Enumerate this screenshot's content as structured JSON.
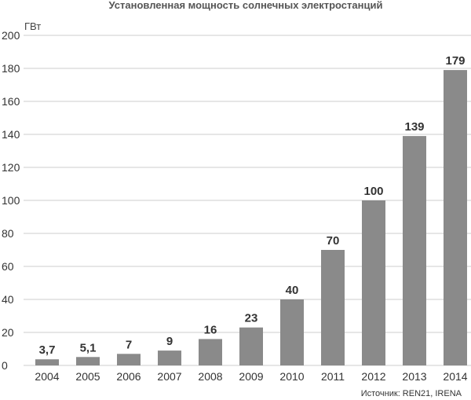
{
  "chart_data": {
    "type": "bar",
    "title": "Установленная мощность солнечных электростанций",
    "ylabel": "ГВт",
    "xlabel": "",
    "categories": [
      "2004",
      "2005",
      "2006",
      "2007",
      "2008",
      "2009",
      "2010",
      "2011",
      "2012",
      "2013",
      "2014"
    ],
    "values": [
      3.7,
      5.1,
      7,
      9,
      16,
      23,
      40,
      70,
      100,
      139,
      179
    ],
    "value_labels": [
      "3,7",
      "5,1",
      "7",
      "9",
      "16",
      "23",
      "40",
      "70",
      "100",
      "139",
      "179"
    ],
    "ylim": [
      0,
      200
    ],
    "yticks": [
      0,
      20,
      40,
      60,
      80,
      100,
      120,
      140,
      160,
      180,
      200
    ],
    "grid": true,
    "bar_color": "#8a8a8a",
    "grid_color": "#cccccc",
    "source": "Источник: REN21, IRENA"
  }
}
